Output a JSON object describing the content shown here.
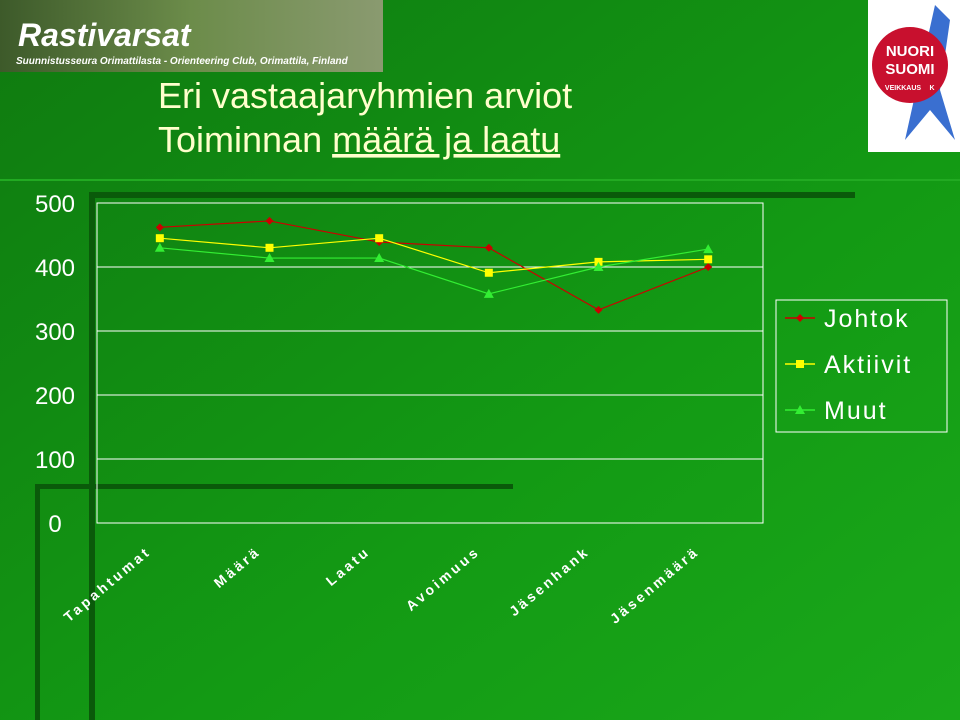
{
  "slide": {
    "brand": "Rastivarsat",
    "tagline": "Suunnistusseura Orimattilasta - Orienteering Club, Orimattila, Finland",
    "logo": [
      "NUORI",
      "SUOMI",
      "VEIKKAUS",
      "K"
    ]
  },
  "chart_data": {
    "type": "line",
    "title": "Eri vastaajaryhmien arviot",
    "subtitle": [
      "Toiminnan",
      "määrä ja laatu"
    ],
    "categories": [
      "Tapahtumat",
      "Määrä",
      "Laatu",
      "Avoimuus",
      "Jäsenhank",
      "Jäsenmäärä"
    ],
    "series": [
      {
        "name": "Johtok",
        "color": "#cc0000",
        "marker": "diamond",
        "values": [
          462,
          472,
          439,
          430,
          333,
          400
        ]
      },
      {
        "name": "Aktiivit",
        "color": "#ffff00",
        "marker": "square",
        "values": [
          445,
          430,
          445,
          391,
          408,
          412
        ]
      },
      {
        "name": "Muut",
        "color": "#33ee33",
        "marker": "triangle",
        "values": [
          430,
          414,
          414,
          358,
          400,
          428
        ]
      }
    ],
    "ylim": [
      0,
      500
    ],
    "yticks": [
      0,
      100,
      200,
      300,
      400,
      500
    ],
    "grid": true,
    "legend": "right"
  }
}
